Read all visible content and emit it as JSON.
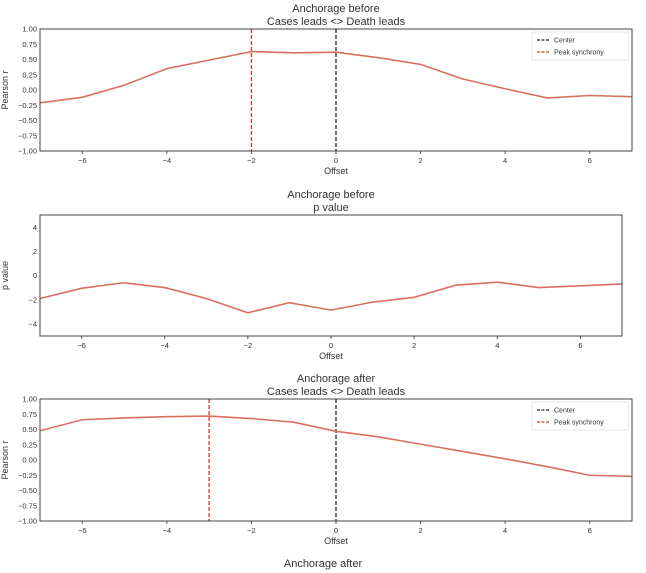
{
  "chart_data": [
    {
      "type": "line",
      "title": [
        "Anchorage before",
        "Cases leads <> Death leads"
      ],
      "xlabel": "Offset",
      "ylabel": "Pearson r",
      "xlim": [
        -7,
        7
      ],
      "ylim": [
        -1,
        1
      ],
      "xticks": [
        -6,
        -4,
        -2,
        0,
        2,
        4,
        6
      ],
      "yticks": [
        -1.0,
        -0.75,
        -0.5,
        -0.25,
        0.0,
        0.25,
        0.5,
        0.75,
        1.0
      ],
      "ytick_labels": [
        "−1.00",
        "−0.75",
        "−0.50",
        "−0.25",
        "0.00",
        "0.25",
        "0.50",
        "0.75",
        "1.00"
      ],
      "x": [
        -7,
        -6,
        -5,
        -4,
        -3,
        -2,
        -1,
        0,
        1,
        2,
        3,
        4,
        5,
        6,
        7
      ],
      "values": [
        -0.21,
        -0.12,
        0.08,
        0.35,
        0.49,
        0.63,
        0.61,
        0.62,
        0.53,
        0.42,
        0.18,
        0.02,
        -0.13,
        -0.09,
        -0.11
      ],
      "vlines": [
        {
          "name": "Center",
          "x": 0,
          "color": "#222222"
        },
        {
          "name": "Peak synchrony",
          "x": -2,
          "color": "#e03030"
        }
      ],
      "legend": "top-right",
      "line_color": "#d9705f",
      "grid": false
    },
    {
      "type": "line",
      "title": [
        "Anchorage before",
        "p value"
      ],
      "xlabel": "Offset",
      "ylabel": "p value",
      "xlim": [
        -7,
        7
      ],
      "ylim": [
        -5,
        5
      ],
      "xticks": [
        -6,
        -4,
        -2,
        0,
        2,
        4,
        6
      ],
      "yticks": [
        -4,
        -2,
        0,
        2,
        4
      ],
      "ytick_labels": [
        "−4",
        "−2",
        "0",
        "2",
        "4"
      ],
      "x": [
        -7,
        -6,
        -5,
        -4,
        -3,
        -2,
        -1,
        0,
        1,
        2,
        3,
        4,
        5,
        6,
        7
      ],
      "values": [
        -1.9,
        -1.06,
        -0.6,
        -1.0,
        -1.9,
        -3.08,
        -2.25,
        -2.86,
        -2.2,
        -1.8,
        -0.8,
        -0.55,
        -1.0,
        -0.85,
        -0.7
      ],
      "vlines": [],
      "line_color": "#d9705f",
      "grid": false
    },
    {
      "type": "line",
      "title": [
        "Anchorage after",
        "Cases leads <> Death leads"
      ],
      "xlabel": "Offset",
      "ylabel": "Pearson r",
      "xlim": [
        -7,
        7
      ],
      "ylim": [
        -1,
        1
      ],
      "xticks": [
        -6,
        -4,
        -2,
        0,
        2,
        4,
        6
      ],
      "yticks": [
        -1.0,
        -0.75,
        -0.5,
        -0.25,
        0.0,
        0.25,
        0.5,
        0.75,
        1.0
      ],
      "ytick_labels": [
        "−1.00",
        "−0.75",
        "−0.50",
        "−0.25",
        "0.00",
        "0.25",
        "0.50",
        "0.75",
        "1.00"
      ],
      "x": [
        -7,
        -6,
        -5,
        -4,
        -3,
        -2,
        -1,
        0,
        1,
        2,
        3,
        4,
        5,
        6,
        7
      ],
      "values": [
        0.48,
        0.66,
        0.69,
        0.71,
        0.72,
        0.68,
        0.62,
        0.47,
        0.38,
        0.26,
        0.14,
        0.02,
        -0.11,
        -0.25,
        -0.27
      ],
      "vlines": [
        {
          "name": "Center",
          "x": 0,
          "color": "#222222"
        },
        {
          "name": "Peak synchrony",
          "x": -3,
          "color": "#e03030"
        }
      ],
      "legend": "top-right",
      "line_color": "#d9705f",
      "grid": false
    }
  ],
  "footer_title": "Anchorage after"
}
